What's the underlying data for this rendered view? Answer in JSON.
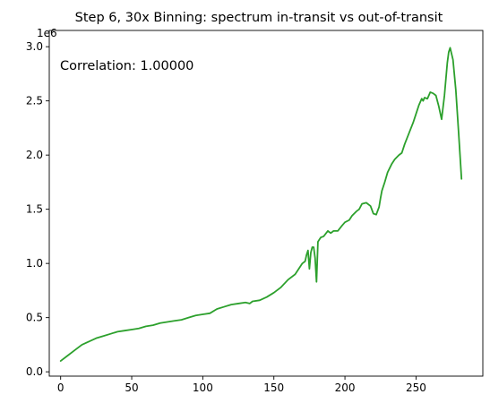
{
  "chart_data": {
    "type": "line",
    "title": "Step 6, 30x Binning: spectrum in-transit vs out-of-transit",
    "xlabel": "",
    "ylabel": "",
    "y_offset_label": "1e6",
    "y_scale": 1000000,
    "xlim": [
      -8,
      297
    ],
    "ylim": [
      -0.04,
      3.15
    ],
    "xticks": [
      0,
      50,
      100,
      150,
      200,
      250
    ],
    "yticks": [
      0.0,
      0.5,
      1.0,
      1.5,
      2.0,
      2.5,
      3.0
    ],
    "ytick_labels": [
      "0.0",
      "0.5",
      "1.0",
      "1.5",
      "2.0",
      "2.5",
      "3.0"
    ],
    "grid": false,
    "annotation": "Correlation: 1.00000",
    "series": [
      {
        "color": "#2ca02c",
        "x": [
          0,
          5,
          10,
          15,
          20,
          25,
          30,
          35,
          40,
          45,
          50,
          55,
          60,
          65,
          70,
          75,
          80,
          85,
          90,
          95,
          100,
          105,
          110,
          115,
          120,
          125,
          130,
          133,
          135,
          140,
          145,
          150,
          155,
          160,
          165,
          170,
          172,
          173,
          174,
          175,
          176,
          177,
          178,
          179,
          180,
          181,
          182,
          183,
          185,
          188,
          190,
          192,
          195,
          198,
          200,
          203,
          205,
          208,
          210,
          212,
          215,
          218,
          220,
          222,
          224,
          225,
          226,
          228,
          230,
          233,
          235,
          238,
          240,
          242,
          245,
          248,
          250,
          252,
          254,
          255,
          256,
          258,
          260,
          262,
          264,
          266,
          268,
          270,
          272,
          273,
          274,
          276,
          278,
          280,
          282
        ],
        "y": [
          0.1,
          0.15,
          0.2,
          0.25,
          0.28,
          0.31,
          0.33,
          0.35,
          0.37,
          0.38,
          0.39,
          0.4,
          0.42,
          0.43,
          0.45,
          0.46,
          0.47,
          0.48,
          0.5,
          0.52,
          0.53,
          0.54,
          0.58,
          0.6,
          0.62,
          0.63,
          0.64,
          0.63,
          0.65,
          0.66,
          0.69,
          0.73,
          0.78,
          0.85,
          0.9,
          1.0,
          1.02,
          1.08,
          1.12,
          0.95,
          1.1,
          1.15,
          1.15,
          1.05,
          0.83,
          1.2,
          1.22,
          1.24,
          1.25,
          1.3,
          1.28,
          1.3,
          1.3,
          1.35,
          1.38,
          1.4,
          1.44,
          1.48,
          1.5,
          1.55,
          1.56,
          1.53,
          1.46,
          1.45,
          1.52,
          1.6,
          1.67,
          1.75,
          1.84,
          1.92,
          1.96,
          2.0,
          2.02,
          2.1,
          2.2,
          2.3,
          2.38,
          2.46,
          2.52,
          2.5,
          2.53,
          2.52,
          2.58,
          2.57,
          2.55,
          2.45,
          2.33,
          2.55,
          2.85,
          2.95,
          2.99,
          2.88,
          2.6,
          2.2,
          1.78
        ]
      }
    ]
  }
}
